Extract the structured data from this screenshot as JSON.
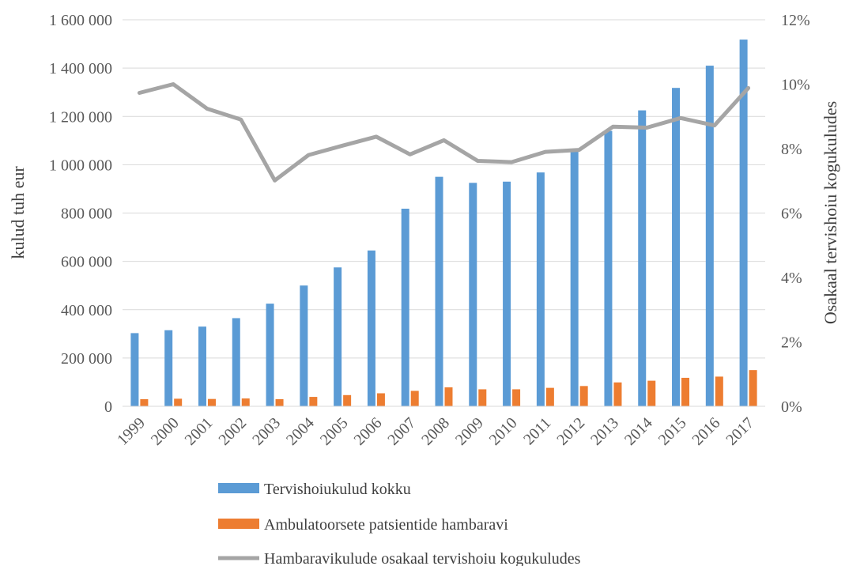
{
  "chart_data": {
    "type": "bar",
    "categories": [
      "1999",
      "2000",
      "2001",
      "2002",
      "2003",
      "2004",
      "2005",
      "2006",
      "2007",
      "2008",
      "2009",
      "2010",
      "2011",
      "2012",
      "2013",
      "2014",
      "2015",
      "2016",
      "2017"
    ],
    "series": [
      {
        "name": "Tervishoiukulud kokku",
        "type": "bar",
        "axis": "left",
        "color": "#5B9BD5",
        "values": [
          303000,
          315000,
          330000,
          365000,
          425000,
          500000,
          575000,
          645000,
          818000,
          950000,
          925000,
          930000,
          968000,
          1055000,
          1140000,
          1225000,
          1318000,
          1410000,
          1518000
        ]
      },
      {
        "name": "Ambulatoorsete patsientide hambaravi",
        "type": "bar",
        "axis": "left",
        "color": "#ED7D31",
        "values": [
          29500,
          31500,
          30500,
          32500,
          29800,
          39000,
          46500,
          54000,
          64000,
          78500,
          70500,
          70500,
          76500,
          84000,
          99000,
          106000,
          118000,
          123000,
          150000
        ]
      },
      {
        "name": "Hambaravikulude osakaal tervishoiu kogukuludes",
        "type": "line",
        "axis": "right",
        "color": "#A5A5A5",
        "values": [
          9.73,
          10.0,
          9.24,
          8.9,
          7.01,
          7.8,
          8.09,
          8.37,
          7.82,
          8.26,
          7.62,
          7.58,
          7.9,
          7.96,
          8.68,
          8.65,
          8.95,
          8.72,
          9.88
        ]
      }
    ],
    "ylabel": "kulud tuh eur",
    "ylabel_right": "Osakaal tervishoiu kogukuludes",
    "ylim": [
      0,
      1600000
    ],
    "y_ticks": [
      "0",
      "200 000",
      "400 000",
      "600 000",
      "800 000",
      "1 000 000",
      "1 200 000",
      "1 400 000",
      "1 600 000"
    ],
    "ylim_right": [
      0,
      12
    ],
    "y_ticks_right": [
      "0%",
      "2%",
      "4%",
      "6%",
      "8%",
      "10%",
      "12%"
    ],
    "grid": true,
    "legend_position": "bottom"
  }
}
